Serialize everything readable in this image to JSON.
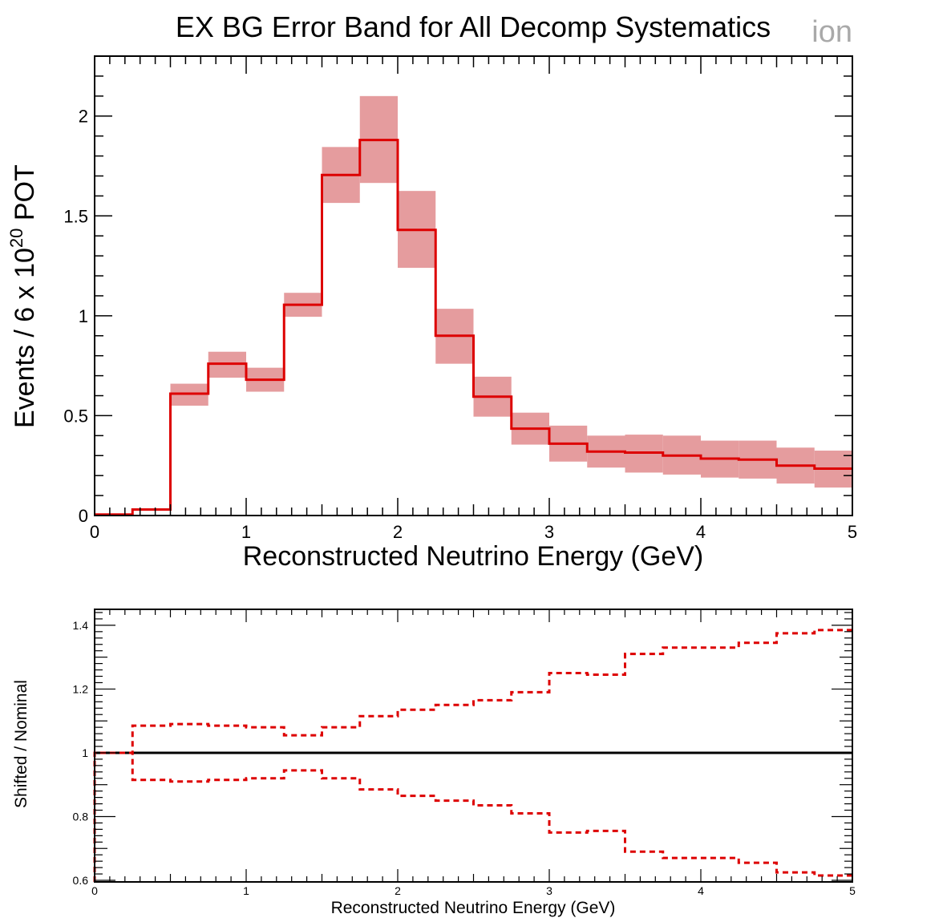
{
  "watermark": "ion",
  "chart_data": [
    {
      "type": "histogram",
      "title": "EX BG Error Band for All Decomp Systematics",
      "xlabel": "Reconstructed Neutrino Energy (GeV)",
      "ylabel_main": "Events / 6 x 10",
      "ylabel_sup": "20",
      "ylabel_tail": " POT",
      "xlim": [
        0,
        5
      ],
      "ylim": [
        0,
        2.3
      ],
      "xticks": [
        0,
        1,
        2,
        3,
        4,
        5
      ],
      "xtick_labels": [
        "0",
        "1",
        "2",
        "3",
        "4",
        "5"
      ],
      "yticks": [
        0,
        0.5,
        1,
        1.5,
        2
      ],
      "ytick_labels": [
        "0",
        "0.5",
        "1",
        "1.5",
        "2"
      ],
      "bin_edges": [
        0,
        0.25,
        0.5,
        0.75,
        1.0,
        1.25,
        1.5,
        1.75,
        2.0,
        2.25,
        2.5,
        2.75,
        3.0,
        3.25,
        3.5,
        3.75,
        4.0,
        4.25,
        4.5,
        4.75,
        5.0
      ],
      "values": [
        0.005,
        0.03,
        0.61,
        0.76,
        0.68,
        1.055,
        1.705,
        1.88,
        1.43,
        0.9,
        0.595,
        0.435,
        0.36,
        0.32,
        0.315,
        0.3,
        0.285,
        0.28,
        0.25,
        0.235
      ],
      "band_low": [
        0.005,
        0.03,
        0.55,
        0.69,
        0.62,
        0.995,
        1.565,
        1.665,
        1.24,
        0.76,
        0.495,
        0.355,
        0.27,
        0.24,
        0.215,
        0.205,
        0.19,
        0.185,
        0.16,
        0.14
      ],
      "band_high": [
        0.005,
        0.03,
        0.66,
        0.82,
        0.74,
        1.115,
        1.845,
        2.1,
        1.625,
        1.035,
        0.695,
        0.515,
        0.45,
        0.4,
        0.405,
        0.4,
        0.375,
        0.375,
        0.34,
        0.325
      ],
      "line_color": "#dd0000",
      "band_color": "#e59c9e"
    },
    {
      "type": "histogram",
      "xlabel": "Reconstructed Neutrino Energy (GeV)",
      "ylabel": "Shifted / Nominal",
      "xlim": [
        0,
        5
      ],
      "ylim": [
        0.595,
        1.45
      ],
      "xticks": [
        0,
        1,
        2,
        3,
        4,
        5
      ],
      "xtick_labels": [
        "0",
        "1",
        "2",
        "3",
        "4",
        "5"
      ],
      "yticks": [
        0.6,
        0.8,
        1.0,
        1.2,
        1.4
      ],
      "ytick_labels": [
        "0.6",
        "0.8",
        "1",
        "1.2",
        "1.4"
      ],
      "bin_edges": [
        0,
        0.25,
        0.5,
        0.75,
        1.0,
        1.25,
        1.5,
        1.75,
        2.0,
        2.25,
        2.5,
        2.75,
        3.0,
        3.25,
        3.5,
        3.75,
        4.0,
        4.25,
        4.5,
        4.75,
        5.0
      ],
      "reference_line": 1.0,
      "series": [
        {
          "values": [
            1.0,
            1.085,
            1.09,
            1.085,
            1.08,
            1.055,
            1.08,
            1.115,
            1.135,
            1.15,
            1.165,
            1.19,
            1.25,
            1.245,
            1.31,
            1.33,
            1.33,
            1.345,
            1.375,
            1.385
          ]
        },
        {
          "values": [
            1.0,
            0.915,
            0.91,
            0.915,
            0.92,
            0.945,
            0.92,
            0.885,
            0.865,
            0.85,
            0.835,
            0.81,
            0.75,
            0.755,
            0.69,
            0.67,
            0.67,
            0.655,
            0.625,
            0.615
          ]
        }
      ],
      "line_color": "#dd0000",
      "reference_color": "#000000"
    }
  ]
}
